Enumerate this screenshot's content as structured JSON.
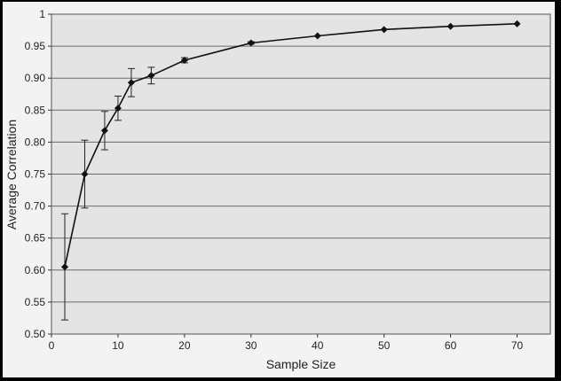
{
  "chart_data": {
    "type": "line",
    "title": "",
    "xlabel": "Sample Size",
    "ylabel": "Average Correlation",
    "xlim": [
      0,
      75
    ],
    "ylim": [
      0.5,
      1.0
    ],
    "x_ticks": [
      0,
      10,
      20,
      30,
      40,
      50,
      60,
      70
    ],
    "x_tick_labels": [
      "0",
      "10",
      "20",
      "30",
      "40",
      "50",
      "60",
      "70"
    ],
    "y_ticks": [
      0.5,
      0.55,
      0.6,
      0.65,
      0.7,
      0.75,
      0.8,
      0.85,
      0.9,
      0.95,
      1.0
    ],
    "y_tick_labels": [
      "0.50",
      "0.55",
      "0.60",
      "0.65",
      "0.70",
      "0.75",
      "0.80",
      "0.85",
      "0.90",
      "0.95",
      "1"
    ],
    "grid": "horizontal",
    "legend": "none",
    "series": [
      {
        "x": [
          2,
          5,
          8,
          10,
          12,
          15,
          20,
          30,
          40,
          50,
          60,
          70
        ],
        "y": [
          0.605,
          0.75,
          0.818,
          0.853,
          0.893,
          0.904,
          0.928,
          0.955,
          0.966,
          0.976,
          0.981,
          0.985
        ],
        "error": [
          0.083,
          0.053,
          0.03,
          0.019,
          0.022,
          0.013,
          0.004,
          0.002,
          0.0,
          0.0,
          0.0,
          0.0
        ],
        "marker": "diamond",
        "color": "#111111"
      }
    ]
  }
}
